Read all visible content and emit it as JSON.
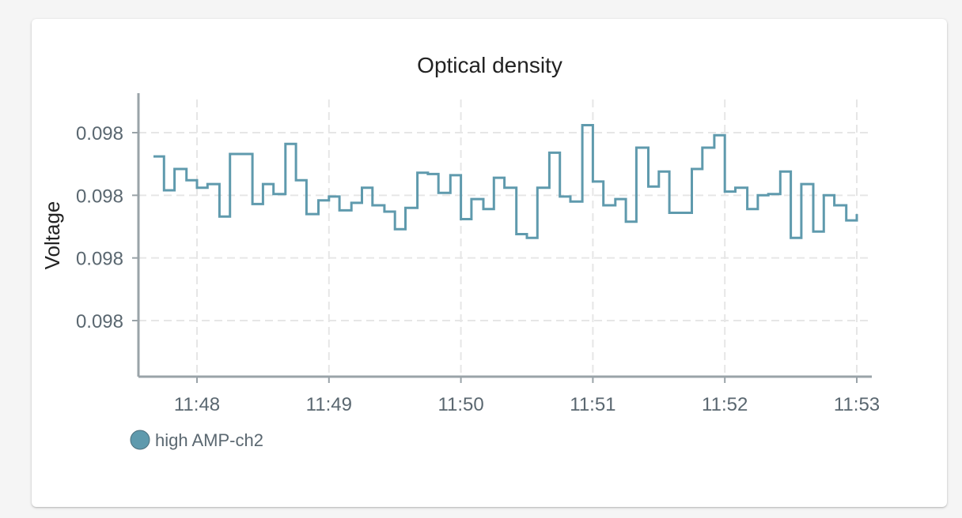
{
  "chart_data": {
    "type": "line",
    "step": true,
    "title": "Optical density",
    "xlabel": "",
    "ylabel": "Voltage",
    "x_ticks": [
      "11:48",
      "11:49",
      "11:50",
      "11:51",
      "11:52",
      "11:53"
    ],
    "y_ticks": [
      "0.098",
      "0.098",
      "0.098",
      "0.098"
    ],
    "x_tick_values": [
      0,
      1,
      2,
      3,
      4,
      5
    ],
    "y_tick_values": [
      0.09815,
      0.0981,
      0.09805,
      0.098
    ],
    "xlim": [
      -0.45,
      5.12
    ],
    "ylim": [
      0.097955,
      0.09816
    ],
    "grid": true,
    "legend_position": "bottom-left",
    "series": [
      {
        "name": "high AMP-ch2",
        "color": "#5f9aad",
        "x": [
          -0.33,
          -0.25,
          -0.17,
          -0.08,
          0.0,
          0.08,
          0.17,
          0.25,
          0.42,
          0.5,
          0.58,
          0.67,
          0.75,
          0.83,
          0.92,
          1.0,
          1.08,
          1.17,
          1.25,
          1.33,
          1.42,
          1.5,
          1.58,
          1.67,
          1.75,
          1.83,
          1.92,
          2.0,
          2.08,
          2.17,
          2.25,
          2.33,
          2.42,
          2.5,
          2.58,
          2.67,
          2.75,
          2.83,
          2.92,
          3.0,
          3.08,
          3.17,
          3.25,
          3.33,
          3.42,
          3.5,
          3.58,
          3.67,
          3.75,
          3.83,
          3.92,
          4.0,
          4.08,
          4.17,
          4.25,
          4.33,
          4.42,
          4.5,
          4.58,
          4.67,
          4.75,
          4.83,
          4.92,
          5.0
        ],
        "values": [
          0.098131,
          0.098104,
          0.098121,
          0.098112,
          0.098106,
          0.098109,
          0.098083,
          0.098133,
          0.098093,
          0.098109,
          0.098101,
          0.098141,
          0.098112,
          0.098085,
          0.098096,
          0.098099,
          0.098088,
          0.098094,
          0.098106,
          0.098092,
          0.098087,
          0.098073,
          0.09809,
          0.098118,
          0.098117,
          0.098102,
          0.098116,
          0.098081,
          0.098097,
          0.098089,
          0.098114,
          0.098106,
          0.098069,
          0.098066,
          0.098106,
          0.098134,
          0.098099,
          0.098095,
          0.098156,
          0.098111,
          0.098092,
          0.098097,
          0.098079,
          0.098138,
          0.098107,
          0.098119,
          0.098086,
          0.098086,
          0.098121,
          0.098138,
          0.098148,
          0.098103,
          0.098106,
          0.098089,
          0.0981,
          0.098101,
          0.098119,
          0.098066,
          0.098109,
          0.098071,
          0.0981,
          0.098092,
          0.09808,
          0.098085
        ]
      }
    ]
  }
}
